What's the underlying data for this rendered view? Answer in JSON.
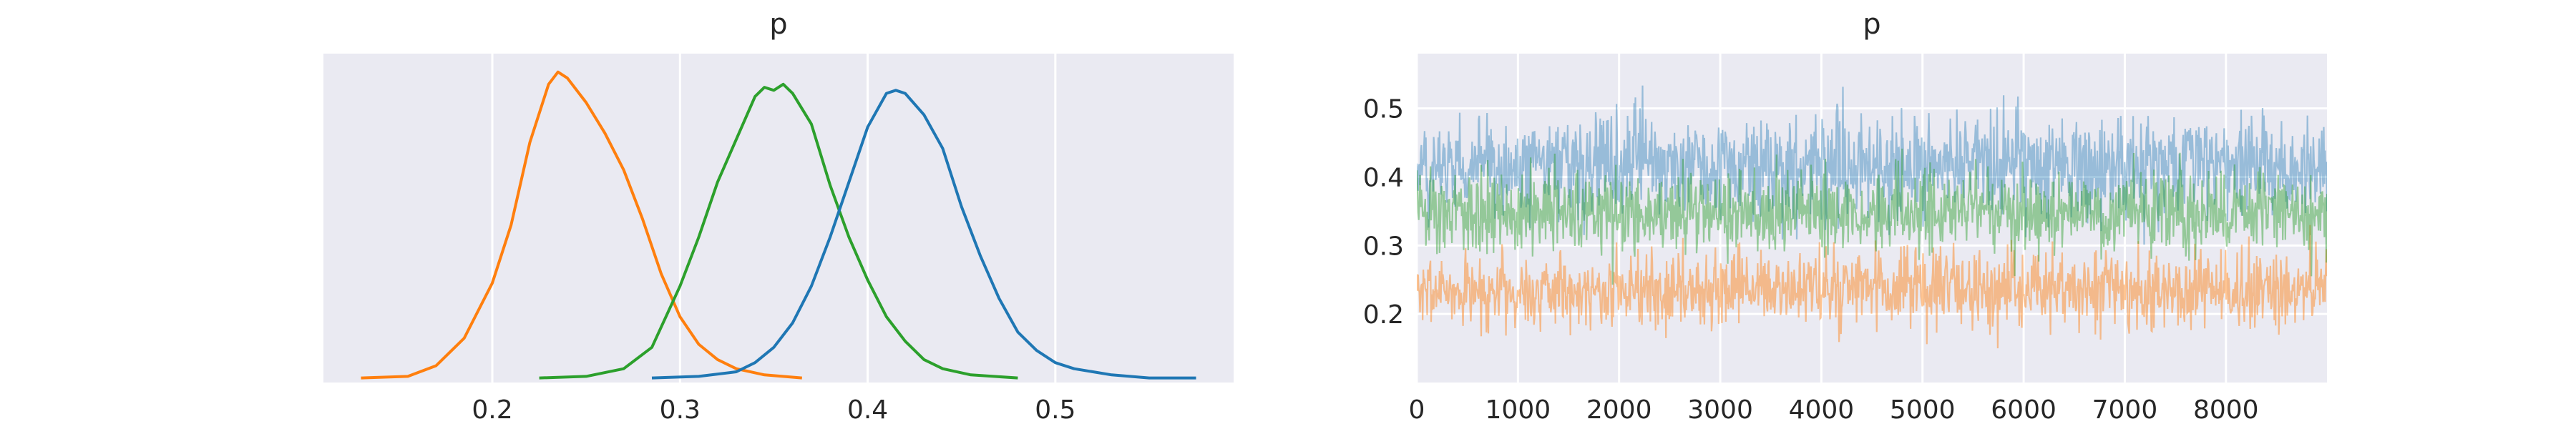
{
  "chart_data": [
    {
      "type": "line",
      "subtype": "kde-density",
      "title": "p",
      "xlabel": "",
      "ylabel": "",
      "xlim": [
        0.11,
        0.595
      ],
      "ylim": [
        -0.015,
        1.06
      ],
      "xticks": [
        0.2,
        0.3,
        0.4,
        0.5
      ],
      "xtick_labels": [
        "0.2",
        "0.3",
        "0.4",
        "0.5"
      ],
      "yticks_visible": false,
      "grid": "vertical",
      "background": "#eaeaf2",
      "legend": "none",
      "series": [
        {
          "color": "#ff7f0e",
          "points": [
            [
              0.13,
              0.0
            ],
            [
              0.155,
              0.005
            ],
            [
              0.17,
              0.04
            ],
            [
              0.185,
              0.13
            ],
            [
              0.2,
              0.31
            ],
            [
              0.21,
              0.5
            ],
            [
              0.22,
              0.77
            ],
            [
              0.23,
              0.96
            ],
            [
              0.235,
              1.0
            ],
            [
              0.24,
              0.98
            ],
            [
              0.25,
              0.9
            ],
            [
              0.26,
              0.8
            ],
            [
              0.27,
              0.68
            ],
            [
              0.28,
              0.52
            ],
            [
              0.29,
              0.34
            ],
            [
              0.3,
              0.2
            ],
            [
              0.31,
              0.11
            ],
            [
              0.32,
              0.06
            ],
            [
              0.33,
              0.03
            ],
            [
              0.345,
              0.01
            ],
            [
              0.365,
              0.0
            ]
          ]
        },
        {
          "color": "#2ca02c",
          "points": [
            [
              0.225,
              0.0
            ],
            [
              0.25,
              0.005
            ],
            [
              0.27,
              0.03
            ],
            [
              0.285,
              0.1
            ],
            [
              0.3,
              0.3
            ],
            [
              0.31,
              0.46
            ],
            [
              0.32,
              0.64
            ],
            [
              0.33,
              0.78
            ],
            [
              0.34,
              0.92
            ],
            [
              0.345,
              0.95
            ],
            [
              0.35,
              0.94
            ],
            [
              0.355,
              0.96
            ],
            [
              0.36,
              0.93
            ],
            [
              0.37,
              0.83
            ],
            [
              0.38,
              0.63
            ],
            [
              0.39,
              0.46
            ],
            [
              0.4,
              0.32
            ],
            [
              0.41,
              0.2
            ],
            [
              0.42,
              0.12
            ],
            [
              0.43,
              0.06
            ],
            [
              0.44,
              0.03
            ],
            [
              0.455,
              0.01
            ],
            [
              0.48,
              0.0
            ]
          ]
        },
        {
          "color": "#1f77b4",
          "points": [
            [
              0.285,
              0.0
            ],
            [
              0.31,
              0.005
            ],
            [
              0.33,
              0.02
            ],
            [
              0.34,
              0.05
            ],
            [
              0.35,
              0.1
            ],
            [
              0.36,
              0.18
            ],
            [
              0.37,
              0.3
            ],
            [
              0.38,
              0.46
            ],
            [
              0.39,
              0.64
            ],
            [
              0.4,
              0.82
            ],
            [
              0.41,
              0.93
            ],
            [
              0.415,
              0.94
            ],
            [
              0.42,
              0.93
            ],
            [
              0.43,
              0.86
            ],
            [
              0.44,
              0.75
            ],
            [
              0.45,
              0.56
            ],
            [
              0.46,
              0.4
            ],
            [
              0.47,
              0.26
            ],
            [
              0.48,
              0.15
            ],
            [
              0.49,
              0.09
            ],
            [
              0.5,
              0.05
            ],
            [
              0.51,
              0.03
            ],
            [
              0.53,
              0.01
            ],
            [
              0.55,
              0.0
            ],
            [
              0.575,
              0.0
            ]
          ]
        }
      ]
    },
    {
      "type": "line",
      "subtype": "trace",
      "title": "p",
      "xlabel": "",
      "ylabel": "",
      "xlim": [
        0,
        8999
      ],
      "ylim": [
        0.1,
        0.58
      ],
      "xticks": [
        0,
        1000,
        2000,
        3000,
        4000,
        5000,
        6000,
        7000,
        8000
      ],
      "xtick_labels": [
        "0",
        "1000",
        "2000",
        "3000",
        "4000",
        "5000",
        "6000",
        "7000",
        "8000"
      ],
      "yticks": [
        0.2,
        0.3,
        0.4,
        0.5
      ],
      "ytick_labels": [
        "0.2",
        "0.3",
        "0.4",
        "0.5"
      ],
      "grid": "both",
      "background": "#eaeaf2",
      "legend": "none",
      "draws": 9000,
      "series": [
        {
          "color": "#ff7f0e",
          "opacity": 0.45,
          "mean": 0.235,
          "typical_low": 0.18,
          "typical_high": 0.29,
          "min": 0.15,
          "max": 0.33
        },
        {
          "color": "#1f77b4",
          "opacity": 0.4,
          "mean": 0.415,
          "typical_low": 0.34,
          "typical_high": 0.49,
          "min": 0.3,
          "max": 0.56
        },
        {
          "color": "#2ca02c",
          "opacity": 0.45,
          "mean": 0.35,
          "typical_low": 0.29,
          "typical_high": 0.41,
          "min": 0.23,
          "max": 0.46
        }
      ]
    }
  ]
}
